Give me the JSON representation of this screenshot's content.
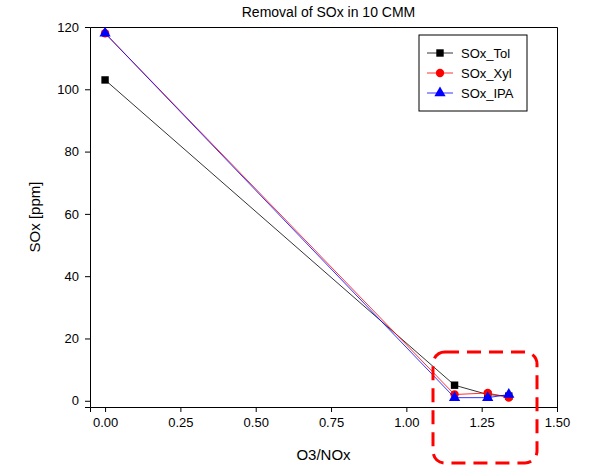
{
  "chart_data": {
    "type": "line",
    "title": "Removal of SOx in 10 CMM",
    "x_label": "O3/NOx",
    "y_label": "SOx [ppm]",
    "x": [
      0,
      1.16,
      1.27,
      1.34
    ],
    "series": [
      {
        "name": "SOx_Tol",
        "color": "#000000",
        "marker": "square",
        "values": [
          103,
          5,
          2,
          1.5
        ]
      },
      {
        "name": "SOx_Xyl",
        "color": "#ff0000",
        "marker": "circle",
        "values": [
          118,
          2,
          2.5,
          1
        ]
      },
      {
        "name": "SOx_IPA",
        "color": "#0000ff",
        "marker": "triangle",
        "values": [
          118,
          1,
          1,
          2
        ]
      }
    ],
    "xlim": [
      -0.05,
      1.5
    ],
    "xticks": [
      {
        "value": 0,
        "label": "0.00"
      },
      {
        "value": 0.25,
        "label": "0.25"
      },
      {
        "value": 0.5,
        "label": "0.50"
      },
      {
        "value": 0.75,
        "label": "0.75"
      },
      {
        "value": 1,
        "label": "1.00"
      },
      {
        "value": 1.25,
        "label": "1.25"
      },
      {
        "value": 1.5,
        "label": "1.50"
      }
    ],
    "ylim": [
      -2,
      120
    ],
    "yticks": [
      0,
      20,
      40,
      60,
      80,
      100,
      120
    ],
    "legend": "top-right",
    "grid": false
  }
}
